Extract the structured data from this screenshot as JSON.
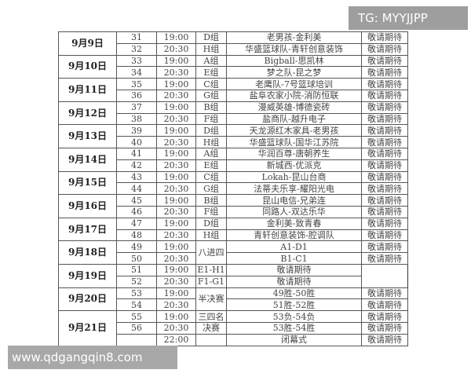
{
  "watermarks": {
    "top": "TG: MYYJJPP",
    "bottom": "www.qdgangqin8.com"
  },
  "schedule": [
    {
      "date": "9月9日",
      "matches": [
        {
          "no": "31",
          "time": "19:00",
          "group": "D组",
          "match": "老男孩-金利美",
          "status": "敬请期待"
        },
        {
          "no": "32",
          "time": "20:30",
          "group": "H组",
          "match": "华盛篮球队-青轩创意装饰",
          "status": "敬请期待"
        }
      ]
    },
    {
      "date": "9月10日",
      "matches": [
        {
          "no": "33",
          "time": "19:00",
          "group": "A组",
          "match": "Bigball-思凯林",
          "status": "敬请期待"
        },
        {
          "no": "34",
          "time": "20:30",
          "group": "E组",
          "match": "梦之队-昆之梦",
          "status": "敬请期待"
        }
      ]
    },
    {
      "date": "9月11日",
      "matches": [
        {
          "no": "35",
          "time": "19:00",
          "group": "C组",
          "match": "老鹰队-7号篮球培训",
          "status": "敬请期待"
        },
        {
          "no": "36",
          "time": "20:30",
          "group": "G组",
          "match": "盐阜农家小院-消防恒联",
          "status": "敬请期待"
        }
      ]
    },
    {
      "date": "9月12日",
      "matches": [
        {
          "no": "37",
          "time": "19:00",
          "group": "B组",
          "match": "漫威英雄-博德瓷砖",
          "status": "敬请期待"
        },
        {
          "no": "38",
          "time": "20:30",
          "group": "F组",
          "match": "盐商队-越升电子",
          "status": "敬请期待"
        }
      ]
    },
    {
      "date": "9月13日",
      "matches": [
        {
          "no": "39",
          "time": "19:00",
          "group": "D组",
          "match": "天龙源红木家具-老男孩",
          "status": "敬请期待"
        },
        {
          "no": "40",
          "time": "20:30",
          "group": "H组",
          "match": "华盛篮球队-国华江苏院",
          "status": "敬请期待"
        }
      ]
    },
    {
      "date": "9月14日",
      "matches": [
        {
          "no": "41",
          "time": "19:00",
          "group": "A组",
          "match": "华润百尊-唐朝养生",
          "status": "敬请期待"
        },
        {
          "no": "42",
          "time": "20:30",
          "group": "E组",
          "match": "新城西-优派克",
          "status": "敬请期待"
        }
      ]
    },
    {
      "date": "9月15日",
      "matches": [
        {
          "no": "43",
          "time": "19:00",
          "group": "C组",
          "match": "Lokah-昆山台商",
          "status": "敬请期待"
        },
        {
          "no": "44",
          "time": "20:30",
          "group": "G组",
          "match": "法蒂夫乐享-耀阳光电",
          "status": "敬请期待"
        }
      ]
    },
    {
      "date": "9月16日",
      "matches": [
        {
          "no": "45",
          "time": "19:00",
          "group": "B组",
          "match": "昆山电信-兄弟连",
          "status": "敬请期待"
        },
        {
          "no": "46",
          "time": "20:30",
          "group": "F组",
          "match": "同路人-双达乐华",
          "status": "敬请期待"
        }
      ]
    },
    {
      "date": "9月17日",
      "matches": [
        {
          "no": "47",
          "time": "19:00",
          "group": "D组",
          "match": "金利美-致青春",
          "status": "敬请期待"
        },
        {
          "no": "48",
          "time": "20:30",
          "group": "H组",
          "match": "青轩创意装饰-腔调队",
          "status": "敬请期待"
        }
      ]
    },
    {
      "date": "9月18日",
      "matches": [
        {
          "no": "49",
          "time": "19:00",
          "group": "八进四",
          "groupSpan": 4,
          "match": "A1-D1",
          "status": "敬请期待"
        },
        {
          "no": "50",
          "time": "20:30",
          "match": "B1-C1",
          "status": "敬请期待"
        }
      ]
    },
    {
      "date": "9月19日",
      "matches": [
        {
          "no": "51",
          "time": "19:00",
          "match": "E1-H1",
          "status": "敬请期待"
        },
        {
          "no": "52",
          "time": "20:30",
          "match": "F1-G1",
          "status": "敬请期待"
        }
      ]
    },
    {
      "date": "9月20日",
      "matches": [
        {
          "no": "53",
          "time": "19:00",
          "group": "半决赛",
          "groupSpan": 2,
          "match": "49胜-50胜",
          "status": "敬请期待"
        },
        {
          "no": "54",
          "time": "20:30",
          "match": "51胜-52胜",
          "status": "敬请期待"
        }
      ]
    },
    {
      "date": "9月21日",
      "matches": [
        {
          "no": "55",
          "time": "19:00",
          "group": "三四名",
          "match": "53负-54负",
          "status": "敬请期待"
        },
        {
          "no": "56",
          "time": "20:30",
          "group": "决赛",
          "match": "53胜-54胜",
          "status": "敬请期待"
        },
        {
          "no": "",
          "time": "22:00",
          "group": "",
          "match": "闭幕式",
          "status": "敬请期待"
        }
      ]
    }
  ]
}
